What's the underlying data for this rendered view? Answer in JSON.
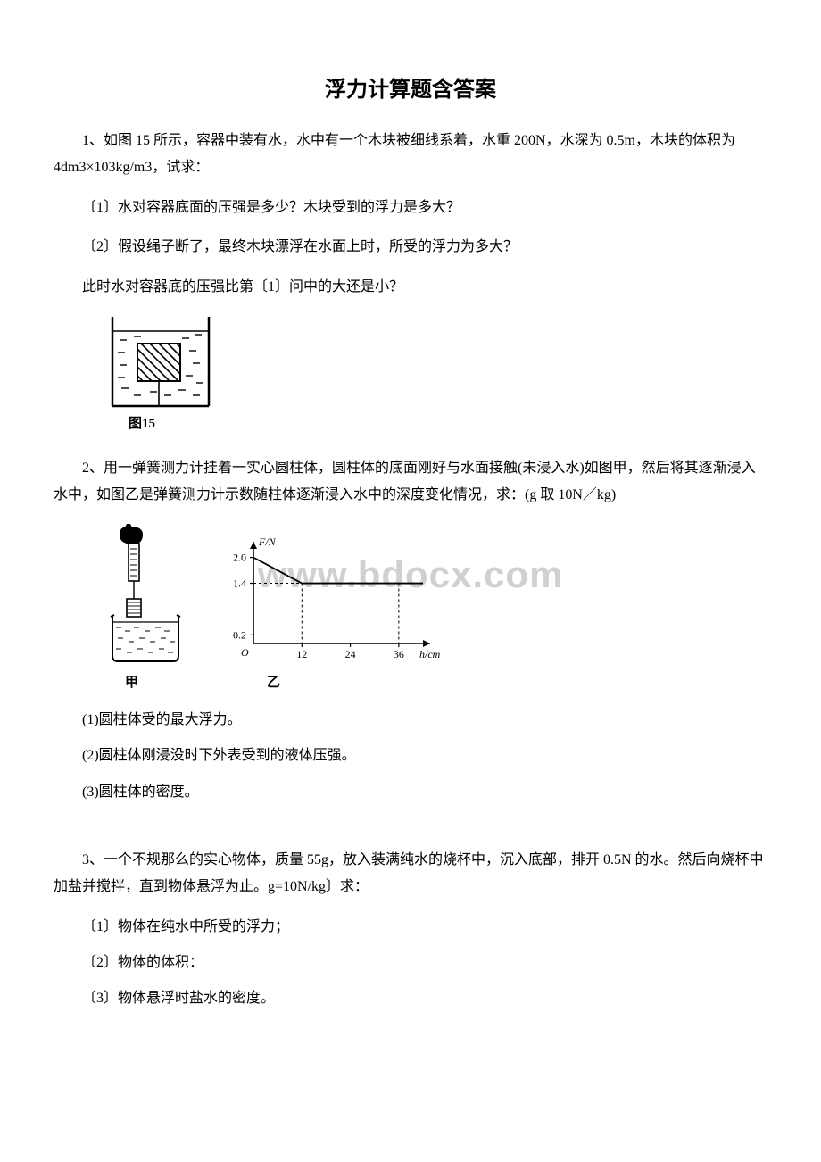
{
  "title": "浮力计算题含答案",
  "q1": {
    "stem": "1、如图 15 所示，容器中装有水，水中有一个木块被细线系着，水重 200N，水深为 0.5m，木块的体积为 4dm3×103kg/m3，试求：",
    "p1": "〔1〕水对容器底面的压强是多少？木块受到的浮力是多大？",
    "p2": "〔2〕假设绳子断了，最终木块漂浮在水面上时，所受的浮力为多大？",
    "p3": "此时水对容器底的压强比第〔1〕问中的大还是小？",
    "fig_label": "图15",
    "fig": {
      "outer_stroke": "#000000",
      "water_stroke": "#000000",
      "hatch_stroke": "#000000",
      "bg": "#ffffff"
    }
  },
  "q2": {
    "stem": "2、用一弹簧测力计挂着一实心圆柱体，圆柱体的底面刚好与水面接触(未浸入水)如图甲，然后将其逐渐浸入水中，如图乙是弹簧测力计示数随柱体逐渐浸入水中的深度变化情况，求：(g 取 10N／kg)",
    "label_left": "甲",
    "label_right": "乙",
    "p1": "(1)圆柱体受的最大浮力。",
    "p2": "(2)圆柱体刚浸没时下外表受到的液体压强。",
    "p3": "(3)圆柱体的密度。",
    "chart": {
      "type": "line",
      "y_label": "F/N",
      "x_label": "h/cm",
      "ylim": [
        0,
        2.2
      ],
      "xlim": [
        0,
        42
      ],
      "y_ticks": [
        0.2,
        1.4,
        2.0
      ],
      "x_ticks": [
        12,
        24,
        36
      ],
      "points": [
        [
          0,
          2.0
        ],
        [
          12,
          1.4
        ],
        [
          42,
          1.4
        ]
      ],
      "axis_color": "#000000",
      "line_color": "#000000",
      "dash_color": "#000000",
      "bg": "#ffffff",
      "font_size": 12
    }
  },
  "q3": {
    "stem": "3、一个不规那么的实心物体，质量 55g，放入装满纯水的烧杯中，沉入底部，排开 0.5N 的水。然后向烧杯中加盐并搅拌，直到物体悬浮为止。g=10N/kg〕求：",
    "p1": "〔1〕物体在纯水中所受的浮力；",
    "p2": "〔2〕物体的体积：",
    "p3": "〔3〕物体悬浮时盐水的密度。"
  },
  "watermark": "www.bdocx.com"
}
